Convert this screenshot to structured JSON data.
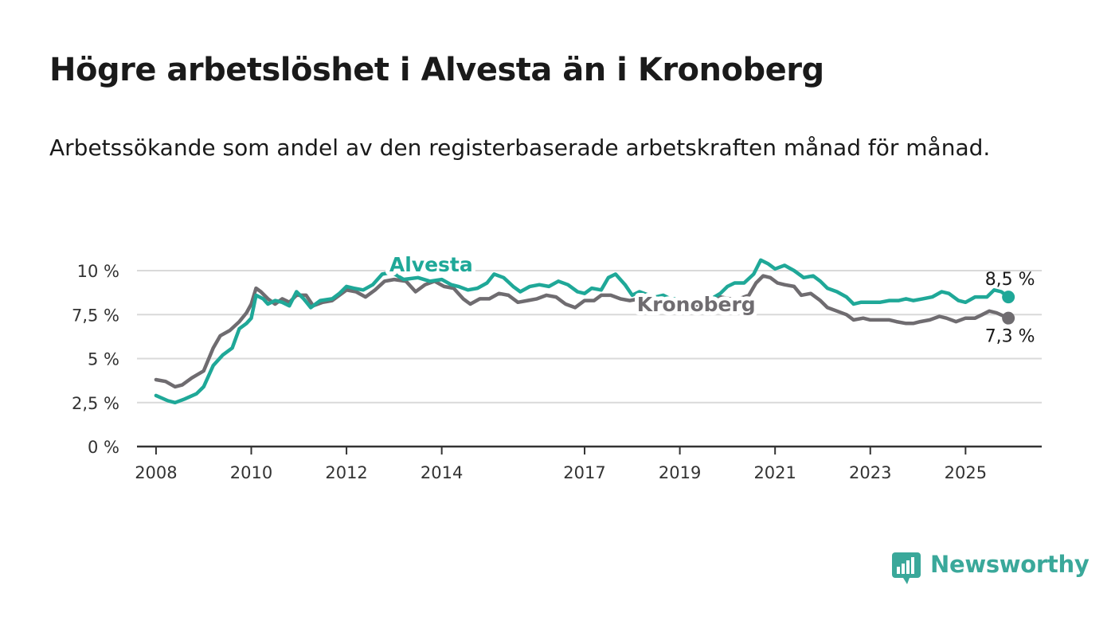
{
  "header": {
    "title": "Högre arbetslöshet i Alvesta än i Kronoberg",
    "subtitle": "Arbetssökande som andel av den registerbaserade arbetskraften månad för månad."
  },
  "branding": {
    "logo_text": "Newsworthy",
    "logo_icon": "bar-chart-speech-bubble-icon",
    "color": "#3aa89a"
  },
  "chart_data": {
    "type": "line",
    "title": "Högre arbetslöshet i Alvesta än i Kronoberg",
    "subtitle": "Arbetssökande som andel av den registerbaserade arbetskraften månad för månad.",
    "xlabel": "",
    "ylabel": "",
    "x_ticks": [
      2008,
      2010,
      2012,
      2014,
      2017,
      2019,
      2021,
      2023,
      2025
    ],
    "y_ticks": [
      0,
      2.5,
      5,
      7.5,
      10
    ],
    "y_tick_labels": [
      "0 %",
      "2,5 %",
      "5 %",
      "7,5 %",
      "10 %"
    ],
    "ylim": [
      0,
      10
    ],
    "grid": true,
    "series": [
      {
        "name": "Alvesta",
        "color": "#1fa898",
        "end_label": "8,5 %",
        "points": [
          [
            2008.0,
            2.9
          ],
          [
            2008.25,
            2.6
          ],
          [
            2008.4,
            2.5
          ],
          [
            2008.6,
            2.7
          ],
          [
            2008.85,
            3.0
          ],
          [
            2009.0,
            3.4
          ],
          [
            2009.2,
            4.6
          ],
          [
            2009.4,
            5.2
          ],
          [
            2009.6,
            5.6
          ],
          [
            2009.75,
            6.7
          ],
          [
            2009.9,
            7.0
          ],
          [
            2010.0,
            7.3
          ],
          [
            2010.1,
            8.6
          ],
          [
            2010.25,
            8.4
          ],
          [
            2010.35,
            8.1
          ],
          [
            2010.5,
            8.3
          ],
          [
            2010.65,
            8.2
          ],
          [
            2010.8,
            8.0
          ],
          [
            2010.95,
            8.8
          ],
          [
            2011.1,
            8.4
          ],
          [
            2011.25,
            7.9
          ],
          [
            2011.45,
            8.3
          ],
          [
            2011.7,
            8.4
          ],
          [
            2011.85,
            8.7
          ],
          [
            2012.0,
            9.1
          ],
          [
            2012.15,
            9.0
          ],
          [
            2012.35,
            8.9
          ],
          [
            2012.55,
            9.2
          ],
          [
            2012.75,
            9.8
          ],
          [
            2012.95,
            9.9
          ],
          [
            2013.2,
            9.5
          ],
          [
            2013.5,
            9.6
          ],
          [
            2013.75,
            9.4
          ],
          [
            2014.0,
            9.5
          ],
          [
            2014.2,
            9.2
          ],
          [
            2014.35,
            9.1
          ],
          [
            2014.55,
            8.9
          ],
          [
            2014.75,
            9.0
          ],
          [
            2014.95,
            9.3
          ],
          [
            2015.1,
            9.8
          ],
          [
            2015.3,
            9.6
          ],
          [
            2015.5,
            9.1
          ],
          [
            2015.65,
            8.8
          ],
          [
            2015.85,
            9.1
          ],
          [
            2016.05,
            9.2
          ],
          [
            2016.25,
            9.1
          ],
          [
            2016.45,
            9.4
          ],
          [
            2016.65,
            9.2
          ],
          [
            2016.85,
            8.8
          ],
          [
            2017.0,
            8.7
          ],
          [
            2017.15,
            9.0
          ],
          [
            2017.35,
            8.9
          ],
          [
            2017.5,
            9.6
          ],
          [
            2017.65,
            9.8
          ],
          [
            2017.85,
            9.2
          ],
          [
            2018.0,
            8.6
          ],
          [
            2018.15,
            8.8
          ],
          [
            2018.35,
            8.6
          ],
          [
            2018.5,
            8.5
          ],
          [
            2018.65,
            8.6
          ],
          [
            2018.8,
            8.4
          ],
          [
            2019.0,
            8.4
          ],
          [
            2019.3,
            8.2
          ],
          [
            2019.6,
            8.3
          ],
          [
            2019.85,
            8.7
          ],
          [
            2020.0,
            9.1
          ],
          [
            2020.15,
            9.3
          ],
          [
            2020.35,
            9.3
          ],
          [
            2020.55,
            9.8
          ],
          [
            2020.7,
            10.6
          ],
          [
            2020.85,
            10.4
          ],
          [
            2021.0,
            10.1
          ],
          [
            2021.2,
            10.3
          ],
          [
            2021.4,
            10.0
          ],
          [
            2021.6,
            9.6
          ],
          [
            2021.8,
            9.7
          ],
          [
            2021.95,
            9.4
          ],
          [
            2022.1,
            9.0
          ],
          [
            2022.3,
            8.8
          ],
          [
            2022.5,
            8.5
          ],
          [
            2022.65,
            8.1
          ],
          [
            2022.8,
            8.2
          ],
          [
            2023.0,
            8.2
          ],
          [
            2023.2,
            8.2
          ],
          [
            2023.4,
            8.3
          ],
          [
            2023.6,
            8.3
          ],
          [
            2023.75,
            8.4
          ],
          [
            2023.9,
            8.3
          ],
          [
            2024.1,
            8.4
          ],
          [
            2024.3,
            8.5
          ],
          [
            2024.5,
            8.8
          ],
          [
            2024.65,
            8.7
          ],
          [
            2024.85,
            8.3
          ],
          [
            2025.0,
            8.2
          ],
          [
            2025.2,
            8.5
          ],
          [
            2025.45,
            8.5
          ],
          [
            2025.6,
            8.9
          ],
          [
            2025.75,
            8.8
          ],
          [
            2025.9,
            8.5
          ]
        ]
      },
      {
        "name": "Kronoberg",
        "color": "#6f6c70",
        "end_label": "7,3 %",
        "points": [
          [
            2008.0,
            3.8
          ],
          [
            2008.2,
            3.7
          ],
          [
            2008.4,
            3.4
          ],
          [
            2008.55,
            3.5
          ],
          [
            2008.75,
            3.9
          ],
          [
            2009.0,
            4.3
          ],
          [
            2009.2,
            5.6
          ],
          [
            2009.35,
            6.3
          ],
          [
            2009.55,
            6.6
          ],
          [
            2009.75,
            7.1
          ],
          [
            2009.9,
            7.6
          ],
          [
            2010.0,
            8.1
          ],
          [
            2010.1,
            9.0
          ],
          [
            2010.2,
            8.8
          ],
          [
            2010.35,
            8.4
          ],
          [
            2010.5,
            8.1
          ],
          [
            2010.65,
            8.4
          ],
          [
            2010.8,
            8.2
          ],
          [
            2010.95,
            8.6
          ],
          [
            2011.15,
            8.6
          ],
          [
            2011.3,
            8.0
          ],
          [
            2011.5,
            8.2
          ],
          [
            2011.7,
            8.3
          ],
          [
            2011.85,
            8.6
          ],
          [
            2012.0,
            8.9
          ],
          [
            2012.2,
            8.8
          ],
          [
            2012.4,
            8.5
          ],
          [
            2012.6,
            8.9
          ],
          [
            2012.8,
            9.4
          ],
          [
            2013.0,
            9.5
          ],
          [
            2013.25,
            9.4
          ],
          [
            2013.45,
            8.8
          ],
          [
            2013.65,
            9.2
          ],
          [
            2013.85,
            9.4
          ],
          [
            2014.05,
            9.1
          ],
          [
            2014.25,
            9.0
          ],
          [
            2014.45,
            8.4
          ],
          [
            2014.6,
            8.1
          ],
          [
            2014.8,
            8.4
          ],
          [
            2015.0,
            8.4
          ],
          [
            2015.2,
            8.7
          ],
          [
            2015.4,
            8.6
          ],
          [
            2015.6,
            8.2
          ],
          [
            2015.8,
            8.3
          ],
          [
            2016.0,
            8.4
          ],
          [
            2016.2,
            8.6
          ],
          [
            2016.4,
            8.5
          ],
          [
            2016.6,
            8.1
          ],
          [
            2016.8,
            7.9
          ],
          [
            2017.0,
            8.3
          ],
          [
            2017.2,
            8.3
          ],
          [
            2017.35,
            8.6
          ],
          [
            2017.55,
            8.6
          ],
          [
            2017.75,
            8.4
          ],
          [
            2017.95,
            8.3
          ],
          [
            2018.15,
            8.4
          ],
          [
            2018.35,
            8.5
          ],
          [
            2018.55,
            8.4
          ],
          [
            2018.75,
            8.3
          ],
          [
            2019.0,
            8.2
          ],
          [
            2019.3,
            8.0
          ],
          [
            2019.6,
            8.1
          ],
          [
            2019.85,
            8.5
          ],
          [
            2020.05,
            8.4
          ],
          [
            2020.25,
            8.4
          ],
          [
            2020.45,
            8.6
          ],
          [
            2020.6,
            9.3
          ],
          [
            2020.75,
            9.7
          ],
          [
            2020.9,
            9.6
          ],
          [
            2021.05,
            9.3
          ],
          [
            2021.2,
            9.2
          ],
          [
            2021.4,
            9.1
          ],
          [
            2021.55,
            8.6
          ],
          [
            2021.75,
            8.7
          ],
          [
            2021.95,
            8.3
          ],
          [
            2022.1,
            7.9
          ],
          [
            2022.3,
            7.7
          ],
          [
            2022.5,
            7.5
          ],
          [
            2022.65,
            7.2
          ],
          [
            2022.85,
            7.3
          ],
          [
            2023.0,
            7.2
          ],
          [
            2023.2,
            7.2
          ],
          [
            2023.4,
            7.2
          ],
          [
            2023.55,
            7.1
          ],
          [
            2023.75,
            7.0
          ],
          [
            2023.9,
            7.0
          ],
          [
            2024.05,
            7.1
          ],
          [
            2024.25,
            7.2
          ],
          [
            2024.45,
            7.4
          ],
          [
            2024.6,
            7.3
          ],
          [
            2024.8,
            7.1
          ],
          [
            2025.0,
            7.3
          ],
          [
            2025.2,
            7.3
          ],
          [
            2025.35,
            7.5
          ],
          [
            2025.5,
            7.7
          ],
          [
            2025.65,
            7.6
          ],
          [
            2025.9,
            7.3
          ]
        ]
      }
    ]
  }
}
